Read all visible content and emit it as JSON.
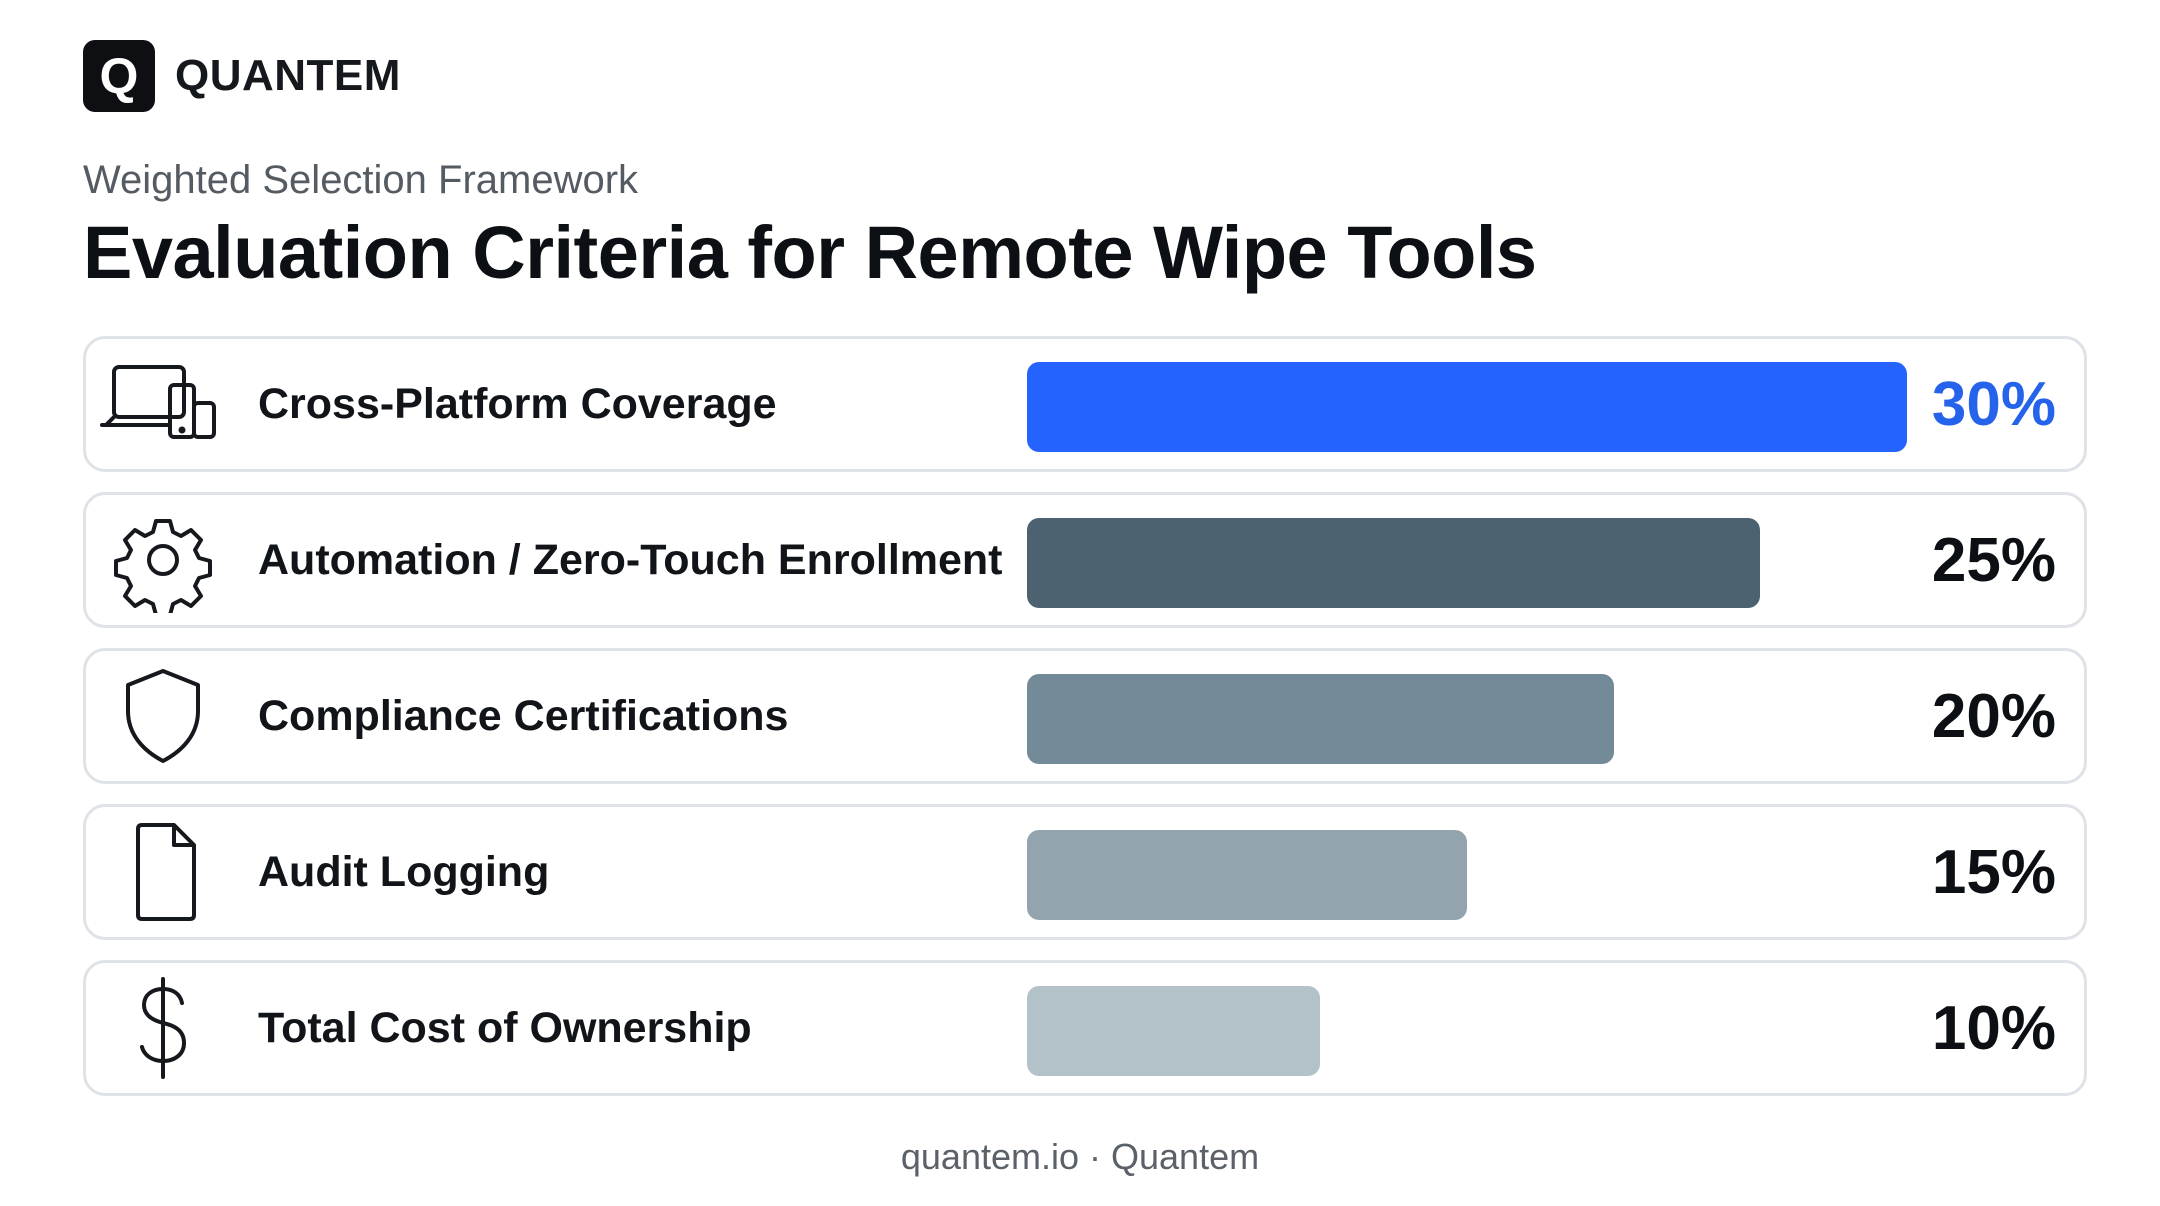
{
  "brand": {
    "logo_letter": "Q",
    "name": "QUANTEM"
  },
  "subtitle": "Weighted Selection Framework",
  "title": "Evaluation Criteria for Remote Wipe Tools",
  "footer": "quantem.io · Quantem",
  "chart_data": {
    "type": "bar",
    "orientation": "horizontal",
    "title": "Evaluation Criteria for Remote Wipe Tools",
    "subtitle": "Weighted Selection Framework",
    "xlim": [
      0,
      30
    ],
    "grid": false,
    "categories": [
      "Cross-Platform Coverage",
      "Automation / Zero-Touch Enrollment",
      "Compliance Certifications",
      "Audit Logging",
      "Total Cost of Ownership"
    ],
    "values": [
      30,
      25,
      20,
      15,
      10
    ],
    "value_labels": [
      "30%",
      "25%",
      "20%",
      "15%",
      "10%"
    ],
    "icons": [
      "devices-icon",
      "gear-icon",
      "shield-icon",
      "document-icon",
      "dollar-icon"
    ],
    "bar_colors": [
      "#2563ff",
      "#4d6270",
      "#738a98",
      "#93a4ae",
      "#b3c1c9"
    ],
    "value_colors": [
      "#2563eb",
      "#0c0f13",
      "#0c0f13",
      "#0c0f13",
      "#0c0f13"
    ]
  }
}
